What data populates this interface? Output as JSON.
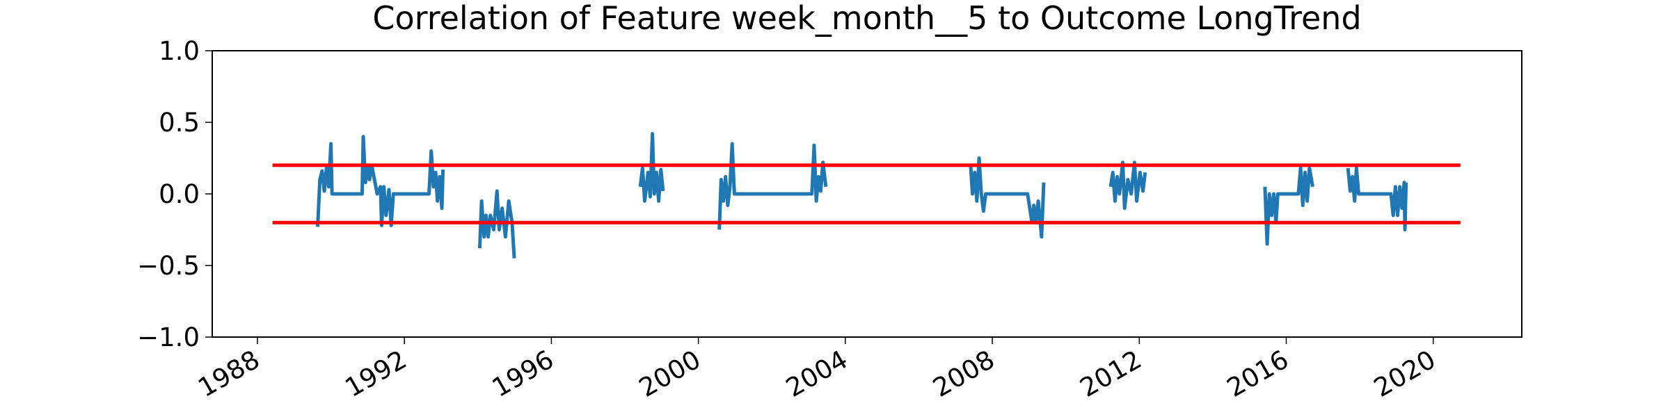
{
  "chart_data": {
    "type": "line",
    "title": "Correlation of Feature week_month__5 to Outcome LongTrend",
    "xlim": [
      1986.77,
      2022.41
    ],
    "xticks": [
      1988,
      1992,
      1996,
      2000,
      2004,
      2008,
      2012,
      2016,
      2020
    ],
    "ylim": [
      -1,
      1
    ],
    "yticks": [
      {
        "value": -1,
        "label": "−1.0"
      },
      {
        "value": -0.5,
        "label": "−0.5"
      },
      {
        "value": 0,
        "label": "0.0"
      },
      0.5,
      {
        "value": 1,
        "label": "1.0"
      }
    ],
    "grid": false,
    "series": [
      {
        "color": "#1f77b4",
        "x": [
          1989.64,
          1989.7,
          1989.76,
          1989.82,
          1989.88,
          1989.94,
          1990.0,
          1990.03,
          1990.85,
          1990.88,
          1990.94,
          1991.0,
          1991.05,
          1991.11,
          1991.2,
          1991.26,
          1991.35,
          1991.38,
          1991.44,
          1991.5,
          1991.58,
          1991.64,
          1991.7,
          1992.67,
          1992.73,
          1992.79,
          1992.85,
          1992.9,
          1992.96,
          1993.02,
          1993.05,
          1993.5,
          1994.05,
          1994.1,
          1994.17,
          1994.22,
          1994.28,
          1994.34,
          1994.43,
          1994.52,
          1994.58,
          1994.66,
          1994.75,
          1994.84,
          1994.93,
          1994.99,
          1996.5,
          1998.42,
          1998.48,
          1998.54,
          1998.63,
          1998.69,
          1998.75,
          1998.8,
          1998.86,
          1998.92,
          1998.98,
          1999.04,
          1999.8,
          2000.57,
          2000.62,
          2000.68,
          2000.74,
          2000.8,
          2000.86,
          2000.92,
          2000.98,
          2003.09,
          2003.15,
          2003.21,
          2003.27,
          2003.33,
          2003.39,
          2003.47,
          2005.5,
          2007.41,
          2007.46,
          2007.52,
          2007.58,
          2007.64,
          2007.7,
          2007.76,
          2007.82,
          2008.96,
          2009.02,
          2009.08,
          2009.13,
          2009.19,
          2009.25,
          2009.34,
          2009.4,
          2010.3,
          2011.22,
          2011.28,
          2011.34,
          2011.4,
          2011.46,
          2011.55,
          2011.6,
          2011.69,
          2011.78,
          2011.87,
          2011.93,
          2012.02,
          2012.1,
          2012.16,
          2013.8,
          2015.42,
          2015.48,
          2015.54,
          2015.6,
          2015.66,
          2015.72,
          2015.77,
          2016.33,
          2016.39,
          2016.45,
          2016.51,
          2016.57,
          2016.63,
          2016.72,
          2017.2,
          2017.68,
          2017.74,
          2017.8,
          2017.86,
          2017.91,
          2017.97,
          2018.85,
          2018.91,
          2018.97,
          2019.03,
          2019.09,
          2019.15,
          2019.21,
          2019.23,
          2019.26
        ],
        "values": [
          -0.23,
          0.1,
          0.16,
          0.02,
          0.18,
          0.05,
          0.35,
          0.0,
          0.0,
          0.4,
          0.08,
          0.2,
          0.1,
          0.2,
          0.08,
          0.0,
          0.05,
          -0.22,
          0.05,
          -0.15,
          0.03,
          -0.22,
          0.0,
          0.0,
          0.3,
          0.05,
          0.15,
          -0.05,
          0.12,
          -0.1,
          0.17,
          null,
          -0.38,
          -0.05,
          -0.3,
          -0.15,
          -0.3,
          -0.15,
          -0.25,
          0.02,
          -0.25,
          -0.1,
          -0.3,
          -0.05,
          -0.2,
          -0.45,
          null,
          0.05,
          0.18,
          -0.05,
          0.15,
          -0.02,
          0.42,
          0.0,
          0.15,
          -0.05,
          0.17,
          0.02,
          null,
          -0.25,
          0.1,
          -0.05,
          0.12,
          -0.08,
          0.05,
          0.35,
          0.0,
          0.0,
          0.34,
          -0.05,
          0.12,
          0.02,
          0.22,
          0.05,
          null,
          0.2,
          0.0,
          0.15,
          -0.05,
          0.25,
          0.0,
          -0.12,
          0.0,
          0.0,
          -0.1,
          -0.2,
          -0.08,
          -0.2,
          -0.05,
          -0.3,
          0.08,
          null,
          0.05,
          0.15,
          -0.05,
          0.12,
          0.0,
          0.22,
          -0.1,
          0.1,
          0.0,
          0.22,
          -0.05,
          0.15,
          0.02,
          0.15,
          null,
          0.05,
          -0.35,
          0.0,
          -0.15,
          0.0,
          -0.2,
          0.0,
          0.0,
          0.18,
          -0.08,
          0.15,
          -0.05,
          0.18,
          0.05,
          null,
          0.18,
          0.02,
          0.12,
          -0.05,
          0.18,
          0.0,
          0.0,
          -0.15,
          0.05,
          -0.15,
          0.05,
          -0.1,
          0.08,
          -0.25,
          0.08
        ]
      },
      {
        "color": "#ff0000",
        "x": [
          1988.41,
          2020.74
        ],
        "values": [
          0.2,
          0.2
        ]
      },
      {
        "color": "#ff0000",
        "x": [
          1988.41,
          2020.74
        ],
        "values": [
          -0.2,
          -0.2
        ]
      }
    ]
  }
}
